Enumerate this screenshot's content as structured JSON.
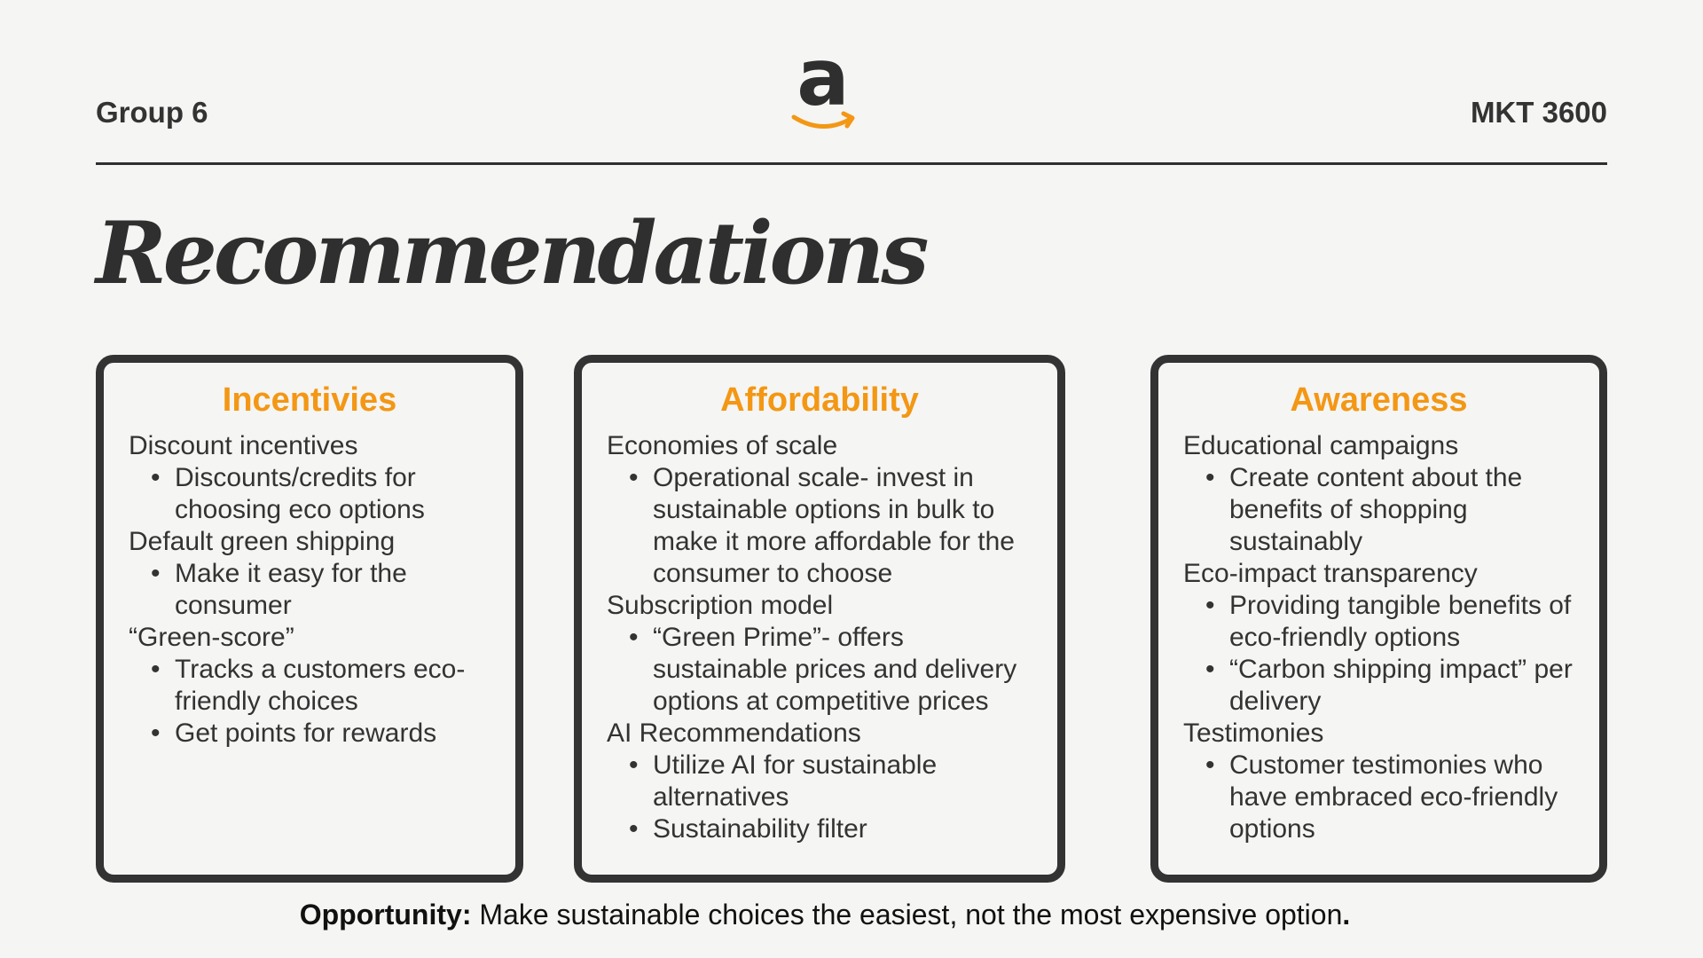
{
  "header": {
    "left_label": "Group 6",
    "right_label": "MKT 3600",
    "logo_icon": "amazon-logo-icon",
    "logo_letter": "a"
  },
  "title": "Recommendations",
  "colors": {
    "background": "#f5f5f3",
    "text": "#2f2f2f",
    "accent": "#f39714",
    "card_border": "#333333"
  },
  "cards": [
    {
      "title": "Incentivies",
      "sections": [
        {
          "heading": "Discount incentives",
          "bullets": [
            "Discounts/credits for choosing eco options"
          ]
        },
        {
          "heading": "Default green shipping",
          "bullets": [
            "Make it easy for the consumer"
          ]
        },
        {
          "heading": "“Green-score”",
          "bullets": [
            "Tracks a customers eco-friendly choices",
            "Get points for rewards"
          ]
        }
      ]
    },
    {
      "title": "Affordability",
      "sections": [
        {
          "heading": "Economies of scale",
          "bullets": [
            "Operational scale- invest in sustainable options in bulk to make it more affordable for the consumer to choose"
          ]
        },
        {
          "heading": "Subscription model",
          "bullets": [
            "“Green Prime”- offers sustainable prices and delivery options at competitive prices"
          ]
        },
        {
          "heading": "AI Recommendations",
          "bullets": [
            "Utilize AI for sustainable alternatives",
            "Sustainability filter"
          ]
        }
      ]
    },
    {
      "title": "Awareness",
      "sections": [
        {
          "heading": "Educational campaigns",
          "bullets": [
            "Create content about the benefits of shopping sustainably"
          ]
        },
        {
          "heading": "Eco-impact transparency",
          "bullets": [
            "Providing tangible benefits of eco-friendly options",
            "“Carbon shipping impact” per delivery"
          ]
        },
        {
          "heading": "Testimonies",
          "bullets": [
            "Customer testimonies who have embraced eco-friendly options"
          ]
        }
      ]
    }
  ],
  "footer": {
    "label": "Opportunity:",
    "text": " Make sustainable choices the easiest, not the most expensive option",
    "end_mark": "."
  }
}
